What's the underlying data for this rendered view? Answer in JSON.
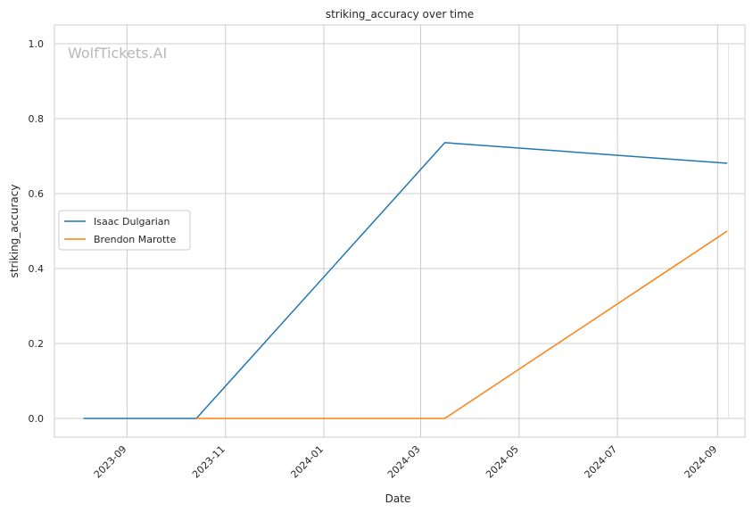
{
  "chart_data": {
    "type": "line",
    "title": "striking_accuracy over time",
    "xlabel": "Date",
    "ylabel": "striking_accuracy",
    "watermark": "WolfTickets.AI",
    "grid": true,
    "legend_position": "center-left",
    "x_ticks": [
      "2023-09",
      "2023-11",
      "2024-01",
      "2024-03",
      "2024-05",
      "2024-07",
      "2024-09"
    ],
    "y_ticks": [
      "0.0",
      "0.2",
      "0.4",
      "0.6",
      "0.8",
      "1.0"
    ],
    "xlim": [
      "2023-07-18",
      "2024-09-18"
    ],
    "ylim": [
      -0.05,
      1.05
    ],
    "series": [
      {
        "name": "Isaac Dulgarian",
        "color": "#1f77b4",
        "points": [
          {
            "x": "2023-08-05",
            "y": 0.0
          },
          {
            "x": "2023-10-14",
            "y": 0.0
          },
          {
            "x": "2024-03-16",
            "y": 0.736
          },
          {
            "x": "2024-09-07",
            "y": 0.681
          }
        ]
      },
      {
        "name": "Brendon Marotte",
        "color": "#ff7f0e",
        "points": [
          {
            "x": "2023-10-14",
            "y": 0.0
          },
          {
            "x": "2024-03-16",
            "y": 0.0
          },
          {
            "x": "2024-09-07",
            "y": 0.5
          }
        ]
      }
    ]
  }
}
